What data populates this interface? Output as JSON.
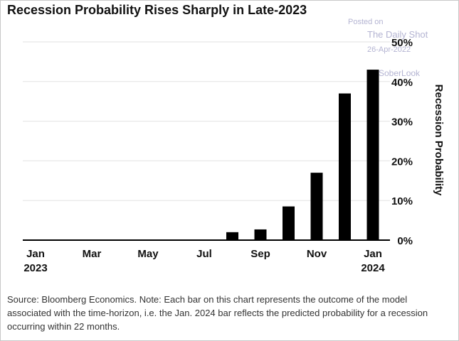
{
  "watermark": {
    "posted": "Posted on",
    "source": "The Daily Shot",
    "date": "26-Apr-2022",
    "handle": "SoberLook"
  },
  "source_note": "Source: Bloomberg Economics. Note: Each bar on this chart represents the outcome of the model associated with the time-horizon, i.e. the Jan. 2024 bar reflects the predicted probability for a recession occurring within 22 months.",
  "chart_data": {
    "type": "bar",
    "title": "Recession Probability Rises Sharply in Late-2023",
    "xlabel": "",
    "ylabel": "Recession Probability",
    "ylim": [
      0,
      50
    ],
    "yticks": [
      "0%",
      "10%",
      "20%",
      "30%",
      "40%",
      "50%"
    ],
    "categories": [
      "Jan 2023",
      "Feb 2023",
      "Mar 2023",
      "Apr 2023",
      "May 2023",
      "Jun 2023",
      "Jul 2023",
      "Aug 2023",
      "Sep 2023",
      "Oct 2023",
      "Nov 2023",
      "Dec 2023",
      "Jan 2024"
    ],
    "x_tick_labels": [
      {
        "index": 0,
        "line1": "Jan",
        "line2": "2023"
      },
      {
        "index": 2,
        "line1": "Mar",
        "line2": ""
      },
      {
        "index": 4,
        "line1": "May",
        "line2": ""
      },
      {
        "index": 6,
        "line1": "Jul",
        "line2": ""
      },
      {
        "index": 8,
        "line1": "Sep",
        "line2": ""
      },
      {
        "index": 10,
        "line1": "Nov",
        "line2": ""
      },
      {
        "index": 12,
        "line1": "Jan",
        "line2": "2024"
      }
    ],
    "values": [
      0,
      0,
      0,
      0,
      0,
      0,
      0,
      2,
      2.7,
      8.5,
      17,
      37,
      43
    ],
    "bar_color": "#000000",
    "grid": true,
    "y_axis_position": "right"
  }
}
